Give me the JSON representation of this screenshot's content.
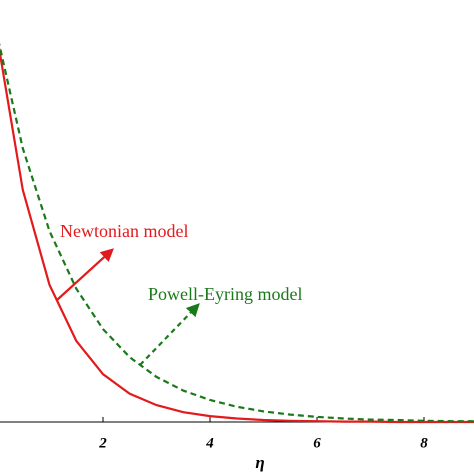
{
  "chart_data": {
    "type": "line",
    "x_label": "η",
    "x": [
      0,
      0.5,
      1,
      1.5,
      2,
      2.5,
      3,
      3.5,
      4,
      4.5,
      5,
      5.5,
      6,
      6.5,
      7,
      7.5,
      8,
      8.5,
      9
    ],
    "series": [
      {
        "name": "Newtonian model",
        "color": "#e31a1c",
        "dash": false,
        "values": [
          1,
          0.592,
          0.35,
          0.207,
          0.122,
          0.072,
          0.043,
          0.025,
          0.015,
          0.009,
          0.005,
          0.003,
          0.002,
          0.001,
          0.001,
          0,
          0,
          0,
          0
        ]
      },
      {
        "name": "Powell-Eyring model",
        "color": "#1a7a1a",
        "dash": true,
        "values": [
          1,
          0.698,
          0.487,
          0.34,
          0.237,
          0.165,
          0.115,
          0.08,
          0.056,
          0.039,
          0.027,
          0.019,
          0.013,
          0.009,
          0.006,
          0.005,
          0.003,
          0.002,
          0.002
        ]
      }
    ],
    "xlim": [
      0,
      9
    ],
    "xticks": [
      2,
      4,
      6,
      8
    ],
    "ylim": [
      0,
      1
    ]
  }
}
